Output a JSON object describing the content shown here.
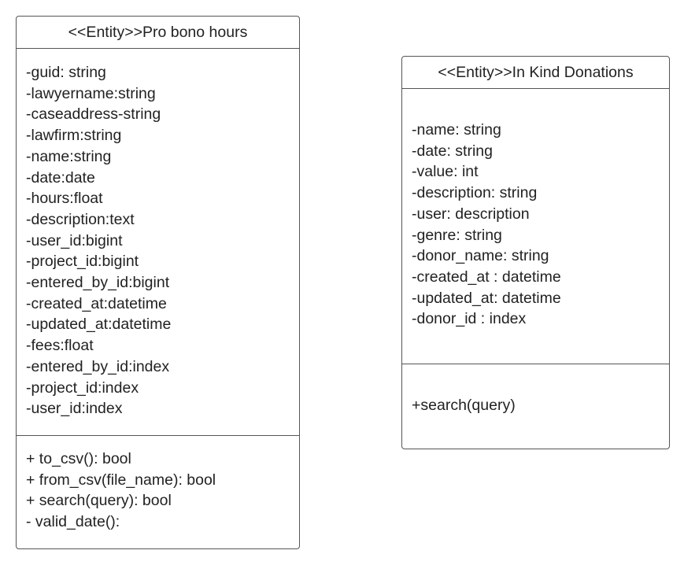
{
  "classes": {
    "pro_bono": {
      "title": "<<Entity>>Pro bono hours",
      "attributes": [
        "-guid: string",
        "-lawyername:string",
        "-caseaddress-string",
        "-lawfirm:string",
        "-name:string",
        "-date:date",
        "-hours:float",
        "-description:text",
        "-user_id:bigint",
        "-project_id:bigint",
        "-entered_by_id:bigint",
        "-created_at:datetime",
        "-updated_at:datetime",
        "-fees:float",
        "-entered_by_id:index",
        "-project_id:index",
        "-user_id:index"
      ],
      "operations": [
        "+ to_csv(): bool",
        "+ from_csv(file_name): bool",
        "+ search(query): bool",
        "- valid_date():"
      ]
    },
    "in_kind": {
      "title": "<<Entity>>In Kind Donations",
      "attributes": [
        "-name: string",
        "-date: string",
        "-value: int",
        "-description: string",
        "-user: description",
        "-genre: string",
        "-donor_name: string",
        "-created_at : datetime",
        "-updated_at: datetime",
        "-donor_id : index"
      ],
      "operations": [
        "+search(query)"
      ]
    }
  }
}
